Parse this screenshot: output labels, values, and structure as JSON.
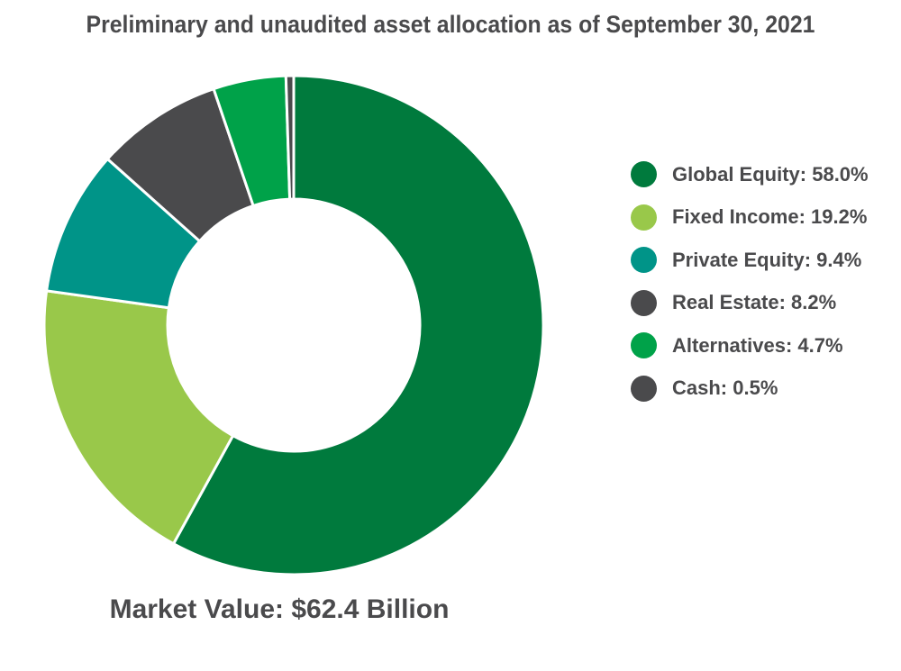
{
  "chart_data": {
    "type": "pie",
    "variant": "donut",
    "title": "Preliminary and unaudited asset allocation as of September 30, 2021",
    "footer": "Market Value: $62.4 Billion",
    "legend_position": "right",
    "slices": [
      {
        "label": "Global Equity",
        "value": 58.0,
        "legend_text": "Global Equity: 58.0%",
        "color": "#007a3d"
      },
      {
        "label": "Fixed Income",
        "value": 19.2,
        "legend_text": "Fixed Income: 19.2%",
        "color": "#99c84a"
      },
      {
        "label": "Private Equity",
        "value": 9.4,
        "legend_text": "Private Equity: 9.4%",
        "color": "#009488"
      },
      {
        "label": "Real Estate",
        "value": 8.2,
        "legend_text": "Real Estate: 8.2%",
        "color": "#4a4a4c"
      },
      {
        "label": "Alternatives",
        "value": 4.7,
        "legend_text": "Alternatives: 4.7%",
        "color": "#00a249"
      },
      {
        "label": "Cash",
        "value": 0.5,
        "legend_text": "Cash: 0.5%",
        "color": "#4a4a4c"
      }
    ]
  }
}
